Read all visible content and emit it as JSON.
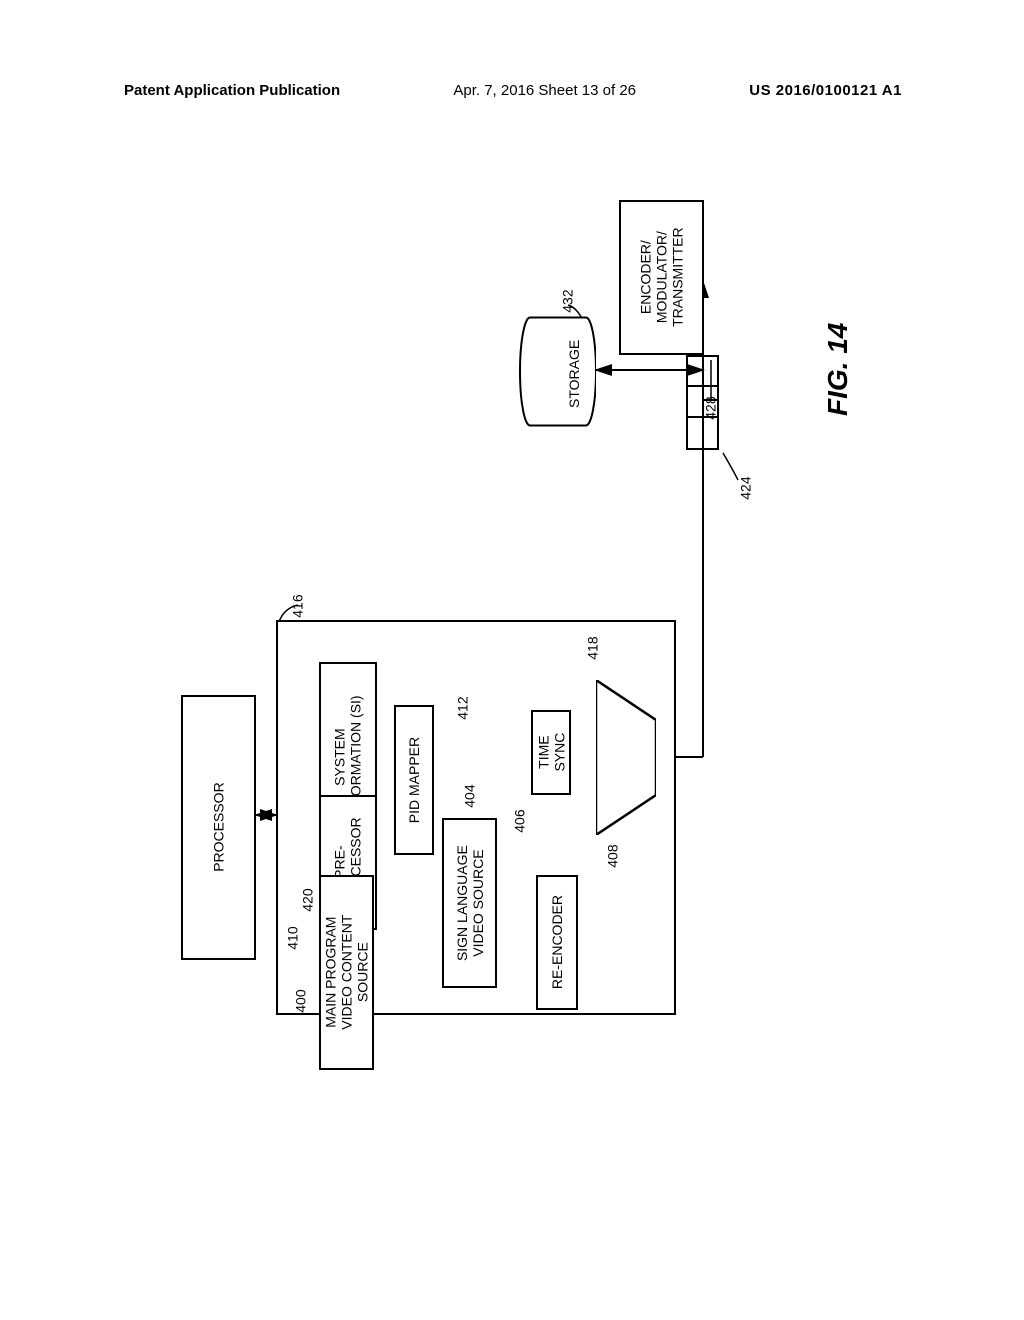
{
  "header": {
    "left": "Patent Application Publication",
    "center": "Apr. 7, 2016   Sheet 13 of 26",
    "right": "US 2016/0100121 A1"
  },
  "figure": {
    "label": "FIG. 14",
    "type": "flowchart",
    "background_color": "#ffffff",
    "line_color": "#000000",
    "line_width": 2,
    "font_family": "Arial",
    "font_size": 14,
    "nodes": {
      "processor_outer": {
        "label": "PROCESSOR",
        "ref": "",
        "shape": "rect"
      },
      "sysinfo": {
        "label": "SYSTEM\nINFORMATION (SI)",
        "ref": "420",
        "shape": "rect"
      },
      "pidmap": {
        "label": "PID MAPPER",
        "ref": "412",
        "shape": "rect"
      },
      "preproc": {
        "label": "PRE-\nPROCESSOR",
        "ref": "410",
        "shape": "rect"
      },
      "timesync": {
        "label": "TIME\nSYNC",
        "ref": "406",
        "shape": "rect"
      },
      "signlang": {
        "label": "SIGN LANGUAGE\nVIDEO SOURCE",
        "ref": "404",
        "shape": "rect"
      },
      "reenc": {
        "label": "RE-ENCODER",
        "ref": "408",
        "shape": "rect"
      },
      "mainprog": {
        "label": "MAIN PROGRAM\nVIDEO CONTENT\nSOURCE",
        "ref": "400",
        "shape": "rect"
      },
      "mux": {
        "label": "",
        "ref": "418",
        "shape": "trapezoid"
      },
      "mainbox": {
        "label": "",
        "ref": "416",
        "shape": "rect"
      },
      "storage": {
        "label": "STORAGE",
        "ref": "432",
        "shape": "cylinder"
      },
      "buffer": {
        "label": "",
        "ref": "424",
        "shape": "segmented-rect",
        "segments": 3
      },
      "emt": {
        "label": "ENCODER/\nMODULATOR/\nTRANSMITTER",
        "ref": "428",
        "shape": "rect"
      }
    },
    "edges": [
      {
        "from": "processor_outer",
        "to": "mainbox",
        "bidir": true
      },
      {
        "from": "sysinfo",
        "to": "mux"
      },
      {
        "from": "pidmap",
        "to": "mux"
      },
      {
        "from": "timesync",
        "to": "mux"
      },
      {
        "from": "reenc",
        "to": "mux"
      },
      {
        "from": "signlang",
        "to": "preproc"
      },
      {
        "from": "preproc",
        "to": "pidmap"
      },
      {
        "from": "timesync",
        "to": "pidmap"
      },
      {
        "from": "mainprog",
        "to": "reenc"
      },
      {
        "from": "mux",
        "to": "buffer_storage_line"
      },
      {
        "from": "storage",
        "to": "line",
        "bidir": true
      },
      {
        "from": "buffer",
        "to": "line"
      },
      {
        "from": "line",
        "to": "emt"
      }
    ]
  }
}
